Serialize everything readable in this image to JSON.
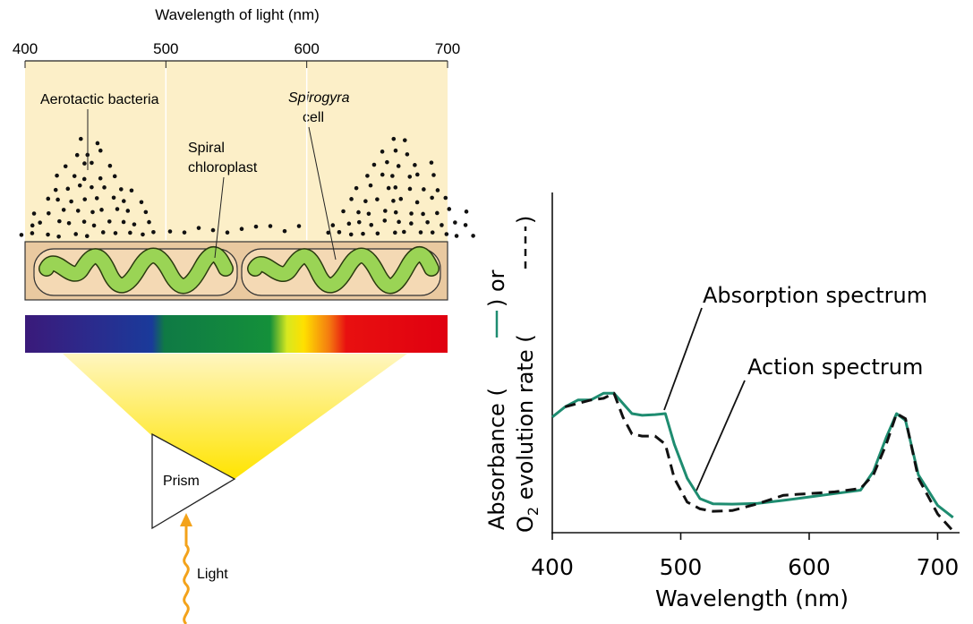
{
  "diagram": {
    "scale_title": "Wavelength of light (nm)",
    "scale_ticks": [
      400,
      500,
      600,
      700
    ],
    "bacteria_label": "Aerotactic bacteria",
    "cell_label": [
      "Spirogyra",
      "cell"
    ],
    "chloroplast_label": [
      "Spiral",
      "chloroplast"
    ],
    "prism_label": "Prism",
    "light_label": "Light"
  },
  "chart_data": {
    "type": "line",
    "ylabel": {
      "line1": [
        "Absorbance (",
        ") or"
      ],
      "line2": [
        "O",
        "2",
        " evolution rate (",
        ")"
      ]
    },
    "xlabel": "Wavelength (nm)",
    "xlim": [
      400,
      715
    ],
    "xticks": [
      400,
      500,
      600,
      700
    ],
    "ylim": [
      0,
      100
    ],
    "x": [
      400,
      410,
      420,
      430,
      440,
      448,
      455,
      462,
      470,
      480,
      488,
      495,
      505,
      515,
      525,
      540,
      560,
      580,
      600,
      620,
      640,
      650,
      660,
      668,
      675,
      685,
      700,
      712
    ],
    "series": [
      {
        "name": "Absorption spectrum",
        "color": "#1e8c70",
        "dashed": false,
        "values": [
          34,
          37,
          39,
          39,
          41,
          41,
          38,
          35,
          34.5,
          34.7,
          35,
          26,
          16,
          10,
          8.5,
          8.4,
          8.6,
          9.5,
          10.5,
          11.5,
          12.5,
          18,
          28,
          35,
          33,
          17,
          8,
          4.5
        ]
      },
      {
        "name": "Action spectrum",
        "color": "#111111",
        "dashed": true,
        "values": [
          null,
          37,
          38,
          39,
          39.5,
          41,
          34,
          29,
          28.4,
          28.4,
          26,
          16,
          9,
          7,
          6.3,
          6.5,
          8.5,
          11,
          11.5,
          12,
          13,
          17,
          26,
          35,
          33.5,
          16,
          5.5,
          0.5
        ]
      }
    ]
  }
}
